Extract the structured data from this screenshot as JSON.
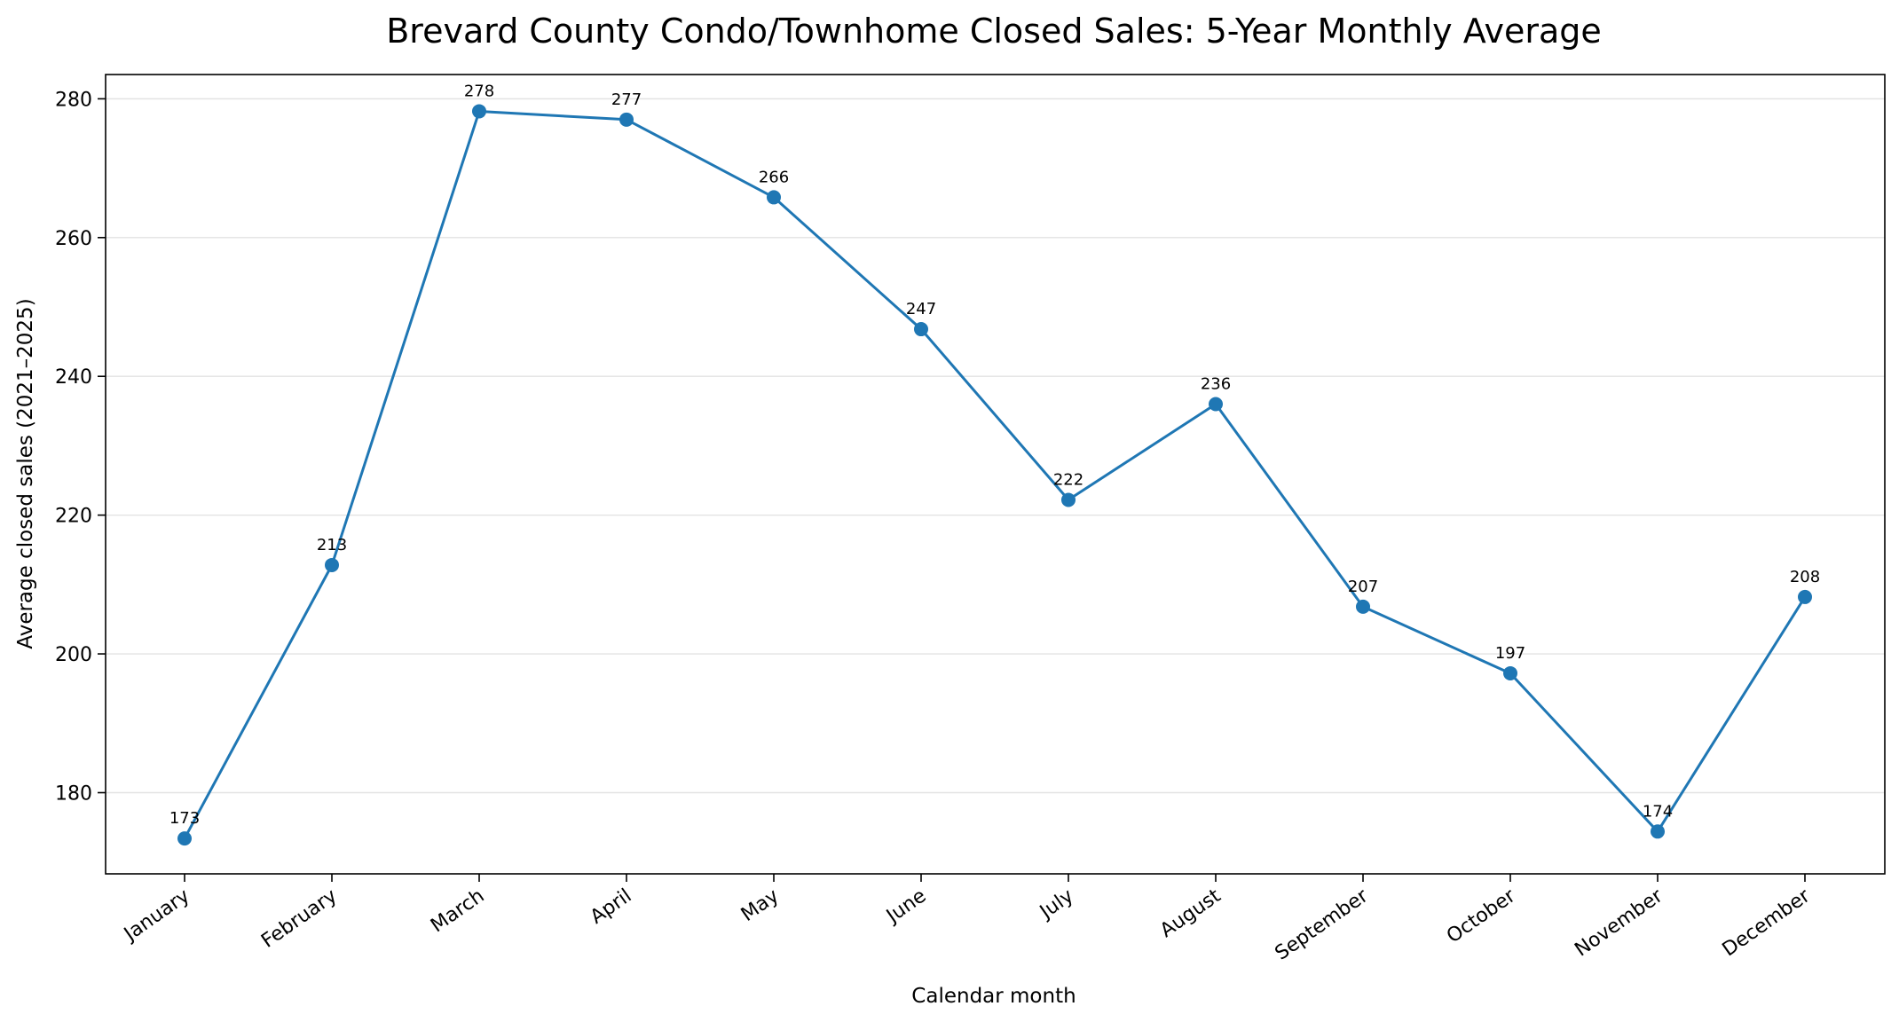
{
  "chart_data": {
    "type": "line",
    "title": "Brevard County Condo/Townhome Closed Sales: 5-Year Monthly Average",
    "xlabel": "Calendar month",
    "ylabel": "Average closed sales (2021–2025)",
    "categories": [
      "January",
      "February",
      "March",
      "April",
      "May",
      "June",
      "July",
      "August",
      "September",
      "October",
      "November",
      "December"
    ],
    "series": [
      {
        "values": [
          173.4,
          212.8,
          278.2,
          277.0,
          265.8,
          246.8,
          222.2,
          236.0,
          206.8,
          197.2,
          174.4,
          208.2
        ],
        "labels": [
          "173",
          "213",
          "278",
          "277",
          "266",
          "247",
          "222",
          "236",
          "207",
          "197",
          "174",
          "208"
        ],
        "color": "#1f77b4"
      }
    ],
    "ylim": [
      168.3,
      283.5
    ],
    "yticks": [
      180,
      200,
      220,
      240,
      260,
      280
    ],
    "grid": "horizontal",
    "legend": "none"
  }
}
